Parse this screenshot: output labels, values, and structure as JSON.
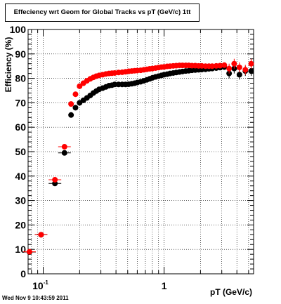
{
  "chart_data": {
    "type": "scatter",
    "title": "Effeciency wrt Geom for Global Tracks vs pT (GeV/c) 1tt",
    "xlabel": "pT (GeV/c)",
    "ylabel": "Efficiency (%)",
    "xscale": "log",
    "xlim": [
      0.075,
      5.5
    ],
    "ylim": [
      0,
      100
    ],
    "grid": true,
    "x_tick_labels": [
      {
        "value": 0.1,
        "base": "10",
        "exp": "-1"
      },
      {
        "value": 1,
        "base": "1",
        "exp": ""
      }
    ],
    "y_ticks": [
      0,
      10,
      20,
      30,
      40,
      50,
      60,
      70,
      80,
      90,
      100
    ],
    "series": [
      {
        "color": "#000000",
        "points": [
          [
            0.077,
            8.9
          ],
          [
            0.096,
            16.0
          ],
          [
            0.125,
            37.0
          ],
          [
            0.15,
            49.5
          ],
          [
            0.17,
            65.0
          ],
          [
            0.185,
            68.0
          ],
          [
            0.2,
            70.0
          ],
          [
            0.215,
            71.0
          ],
          [
            0.23,
            72.0
          ],
          [
            0.245,
            73.0
          ],
          [
            0.26,
            74.0
          ],
          [
            0.275,
            74.8
          ],
          [
            0.29,
            75.5
          ],
          [
            0.31,
            76.0
          ],
          [
            0.33,
            76.5
          ],
          [
            0.35,
            77.0
          ],
          [
            0.37,
            77.2
          ],
          [
            0.39,
            77.5
          ],
          [
            0.42,
            77.5
          ],
          [
            0.45,
            77.5
          ],
          [
            0.48,
            77.5
          ],
          [
            0.51,
            77.6
          ],
          [
            0.54,
            77.8
          ],
          [
            0.57,
            78.0
          ],
          [
            0.6,
            78.3
          ],
          [
            0.64,
            78.6
          ],
          [
            0.68,
            79.0
          ],
          [
            0.72,
            79.4
          ],
          [
            0.76,
            79.8
          ],
          [
            0.8,
            80.2
          ],
          [
            0.85,
            80.6
          ],
          [
            0.9,
            80.9
          ],
          [
            0.95,
            81.2
          ],
          [
            1.0,
            81.5
          ],
          [
            1.06,
            81.7
          ],
          [
            1.12,
            82.0
          ],
          [
            1.19,
            82.2
          ],
          [
            1.26,
            82.4
          ],
          [
            1.34,
            82.6
          ],
          [
            1.42,
            82.8
          ],
          [
            1.51,
            83.0
          ],
          [
            1.6,
            83.1
          ],
          [
            1.7,
            83.3
          ],
          [
            1.81,
            83.4
          ],
          [
            1.93,
            83.5
          ],
          [
            2.05,
            83.6
          ],
          [
            2.2,
            83.7
          ],
          [
            2.35,
            83.9
          ],
          [
            2.5,
            84.0
          ],
          [
            2.7,
            84.2
          ],
          [
            2.9,
            84.4
          ],
          [
            3.15,
            84.6
          ],
          [
            3.45,
            82.0
          ],
          [
            3.8,
            84.0
          ],
          [
            4.2,
            81.5
          ],
          [
            4.7,
            83.0
          ],
          [
            5.25,
            83.0
          ]
        ]
      },
      {
        "color": "#ff0000",
        "points": [
          [
            0.077,
            9.0
          ],
          [
            0.096,
            16.0
          ],
          [
            0.125,
            38.5
          ],
          [
            0.15,
            52.0
          ],
          [
            0.17,
            69.5
          ],
          [
            0.185,
            73.5
          ],
          [
            0.2,
            76.8
          ],
          [
            0.215,
            78.0
          ],
          [
            0.23,
            79.0
          ],
          [
            0.245,
            79.8
          ],
          [
            0.26,
            80.4
          ],
          [
            0.275,
            80.9
          ],
          [
            0.29,
            81.2
          ],
          [
            0.31,
            81.5
          ],
          [
            0.33,
            81.8
          ],
          [
            0.35,
            82.0
          ],
          [
            0.37,
            82.1
          ],
          [
            0.39,
            82.2
          ],
          [
            0.42,
            82.4
          ],
          [
            0.45,
            82.5
          ],
          [
            0.48,
            82.7
          ],
          [
            0.51,
            82.9
          ],
          [
            0.54,
            83.0
          ],
          [
            0.57,
            83.1
          ],
          [
            0.6,
            83.2
          ],
          [
            0.64,
            83.3
          ],
          [
            0.68,
            83.5
          ],
          [
            0.72,
            83.7
          ],
          [
            0.76,
            83.9
          ],
          [
            0.8,
            84.0
          ],
          [
            0.85,
            84.2
          ],
          [
            0.9,
            84.4
          ],
          [
            0.95,
            84.6
          ],
          [
            1.0,
            84.7
          ],
          [
            1.06,
            84.9
          ],
          [
            1.12,
            85.0
          ],
          [
            1.19,
            85.1
          ],
          [
            1.26,
            85.2
          ],
          [
            1.34,
            85.3
          ],
          [
            1.42,
            85.3
          ],
          [
            1.51,
            85.3
          ],
          [
            1.6,
            85.3
          ],
          [
            1.7,
            85.2
          ],
          [
            1.81,
            85.2
          ],
          [
            1.93,
            85.1
          ],
          [
            2.05,
            85.1
          ],
          [
            2.2,
            85.0
          ],
          [
            2.35,
            85.0
          ],
          [
            2.5,
            85.0
          ],
          [
            2.7,
            85.1
          ],
          [
            2.9,
            85.2
          ],
          [
            3.15,
            85.4
          ],
          [
            3.45,
            84.0
          ],
          [
            3.8,
            86.0
          ],
          [
            4.2,
            84.5
          ],
          [
            4.7,
            83.5
          ],
          [
            5.25,
            86.0
          ]
        ]
      }
    ]
  },
  "timestamp": "Wed Nov  9 10:43:59 2011"
}
